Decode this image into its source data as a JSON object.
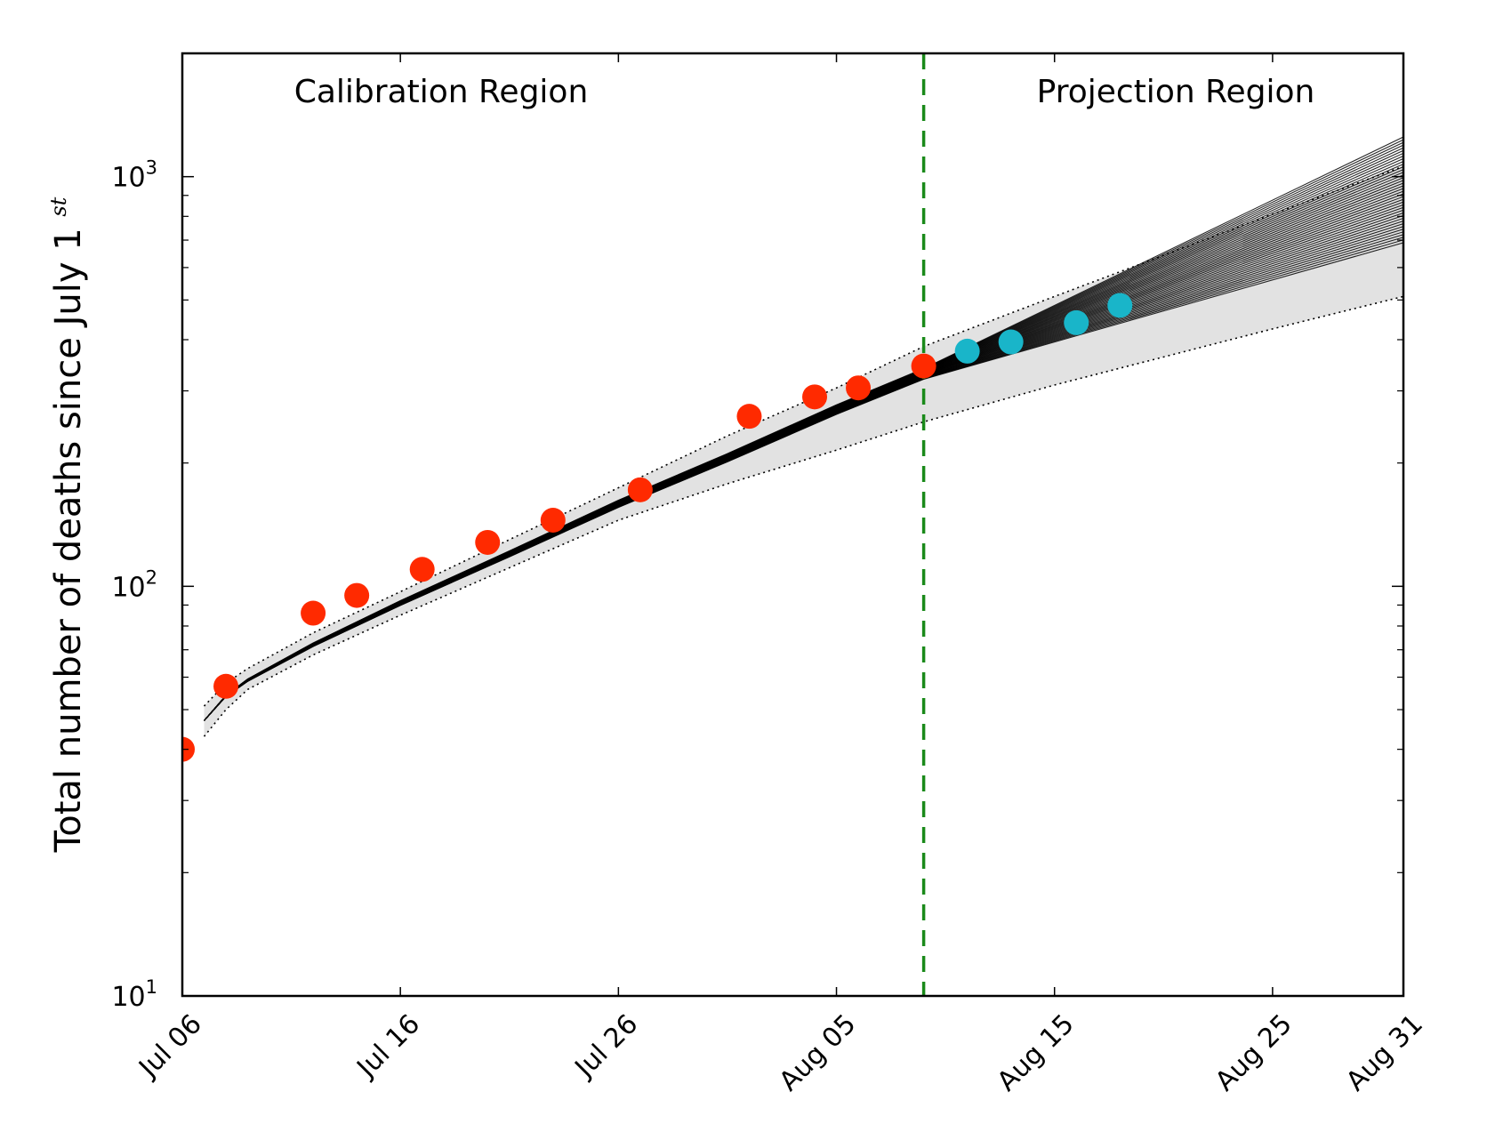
{
  "chart_data": {
    "type": "line",
    "title": "",
    "xlabel": "",
    "ylabel": "Total number of deaths since July 1",
    "ylabel_superscript": "st",
    "y_scale": "log",
    "xlim": [
      "2014-07-06",
      "2014-08-31"
    ],
    "ylim": [
      10,
      2000
    ],
    "x_ticks": [
      {
        "date": "2014-07-06",
        "label": "Jul 06"
      },
      {
        "date": "2014-07-16",
        "label": "Jul 16"
      },
      {
        "date": "2014-07-26",
        "label": "Jul 26"
      },
      {
        "date": "2014-08-05",
        "label": "Aug 05"
      },
      {
        "date": "2014-08-15",
        "label": "Aug 15"
      },
      {
        "date": "2014-08-25",
        "label": "Aug 25"
      },
      {
        "date": "2014-08-31",
        "label": "Aug 31"
      }
    ],
    "y_ticks": [
      {
        "value": 10,
        "base": "10",
        "exp": "1"
      },
      {
        "value": 100,
        "base": "10",
        "exp": "2"
      },
      {
        "value": 1000,
        "base": "10",
        "exp": "3"
      }
    ],
    "regions": {
      "calibration_label": "Calibration Region",
      "projection_label": "Projection Region",
      "divider_date": "2014-08-09",
      "divider_color": "#1a8a1a"
    },
    "band": {
      "color": "#e2e2e2",
      "dates": [
        "2014-07-07",
        "2014-07-08",
        "2014-07-09",
        "2014-07-12",
        "2014-07-16",
        "2014-07-21",
        "2014-07-26",
        "2014-07-31",
        "2014-08-05",
        "2014-08-09",
        "2014-08-15",
        "2014-08-25",
        "2014-08-31"
      ],
      "upper": [
        51,
        58,
        63,
        77,
        97,
        130,
        174,
        233,
        305,
        385,
        510,
        810,
        1060
      ],
      "lower": [
        43,
        50,
        56,
        68,
        85,
        111,
        145,
        178,
        215,
        252,
        310,
        425,
        510
      ]
    },
    "model_runs": {
      "color": "#000000",
      "count": 40,
      "dates": [
        "2014-07-07",
        "2014-07-08",
        "2014-07-09",
        "2014-07-12",
        "2014-07-16",
        "2014-07-21",
        "2014-07-26",
        "2014-07-31",
        "2014-08-05",
        "2014-08-09"
      ],
      "median": [
        47,
        54,
        59,
        72,
        91,
        120,
        159,
        206,
        270,
        330
      ],
      "end_date": "2014-08-31",
      "end_min": 690,
      "end_max": 1250
    },
    "series": [
      {
        "color": "#ff2a00",
        "points": [
          {
            "x": "2014-07-06",
            "y": 40
          },
          {
            "x": "2014-07-08",
            "y": 57
          },
          {
            "x": "2014-07-12",
            "y": 86
          },
          {
            "x": "2014-07-14",
            "y": 95
          },
          {
            "x": "2014-07-17",
            "y": 110
          },
          {
            "x": "2014-07-20",
            "y": 128
          },
          {
            "x": "2014-07-23",
            "y": 145
          },
          {
            "x": "2014-07-27",
            "y": 172
          },
          {
            "x": "2014-08-01",
            "y": 260
          },
          {
            "x": "2014-08-04",
            "y": 290
          },
          {
            "x": "2014-08-06",
            "y": 305
          },
          {
            "x": "2014-08-09",
            "y": 345
          }
        ]
      },
      {
        "color": "#19b5c9",
        "points": [
          {
            "x": "2014-08-11",
            "y": 375
          },
          {
            "x": "2014-08-13",
            "y": 395
          },
          {
            "x": "2014-08-16",
            "y": 440
          },
          {
            "x": "2014-08-18",
            "y": 485
          }
        ]
      }
    ],
    "grid": false,
    "legend": "none"
  }
}
